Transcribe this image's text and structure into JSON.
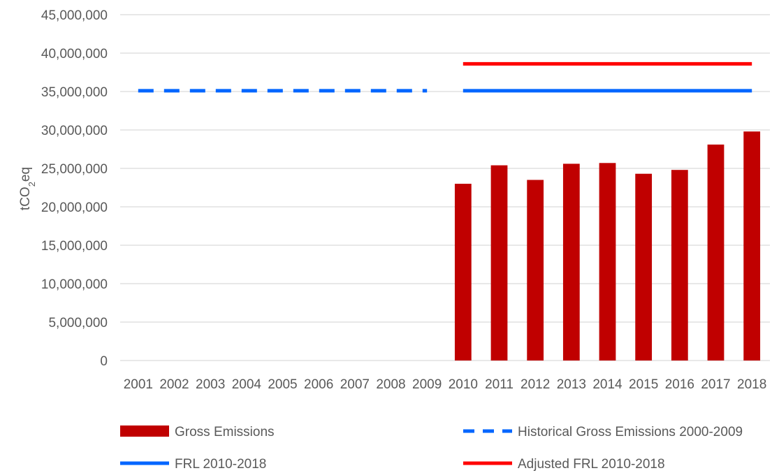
{
  "chart_data": {
    "type": "bar",
    "title": "",
    "xlabel": "",
    "ylabel": {
      "prefix": "tCO",
      "subscript": "2",
      "suffix": "eq"
    },
    "ylim": [
      0,
      45000000
    ],
    "yticks": [
      0,
      5000000,
      10000000,
      15000000,
      20000000,
      25000000,
      30000000,
      35000000,
      40000000,
      45000000
    ],
    "ytick_labels": [
      "0",
      "5,000,000",
      "10,000,000",
      "15,000,000",
      "20,000,000",
      "25,000,000",
      "30,000,000",
      "35,000,000",
      "40,000,000",
      "45,000,000"
    ],
    "grid": true,
    "legend_position": "bottom",
    "categories": [
      "2001",
      "2002",
      "2003",
      "2004",
      "2005",
      "2006",
      "2007",
      "2008",
      "2009",
      "2010",
      "2011",
      "2012",
      "2013",
      "2014",
      "2015",
      "2016",
      "2017",
      "2018"
    ],
    "series": [
      {
        "name": "Gross Emissions",
        "kind": "bar",
        "color": "#c00000",
        "values": [
          null,
          null,
          null,
          null,
          null,
          null,
          null,
          null,
          null,
          23000000,
          25400000,
          23500000,
          25600000,
          25700000,
          24300000,
          24800000,
          28100000,
          29800000
        ]
      },
      {
        "name": "Historical Gross Emissions 2000-2009",
        "kind": "line",
        "style": "dashed",
        "color": "#0066ff",
        "values": [
          35100000,
          35100000,
          35100000,
          35100000,
          35100000,
          35100000,
          35100000,
          35100000,
          35100000,
          null,
          null,
          null,
          null,
          null,
          null,
          null,
          null,
          null
        ]
      },
      {
        "name": "FRL 2010-2018",
        "kind": "line",
        "style": "solid",
        "color": "#0066ff",
        "values": [
          null,
          null,
          null,
          null,
          null,
          null,
          null,
          null,
          null,
          35100000,
          35100000,
          35100000,
          35100000,
          35100000,
          35100000,
          35100000,
          35100000,
          35100000
        ]
      },
      {
        "name": "Adjusted FRL 2010-2018",
        "kind": "line",
        "style": "solid",
        "color": "#ff0000",
        "values": [
          null,
          null,
          null,
          null,
          null,
          null,
          null,
          null,
          null,
          38600000,
          38600000,
          38600000,
          38600000,
          38600000,
          38600000,
          38600000,
          38600000,
          38600000
        ]
      }
    ]
  }
}
